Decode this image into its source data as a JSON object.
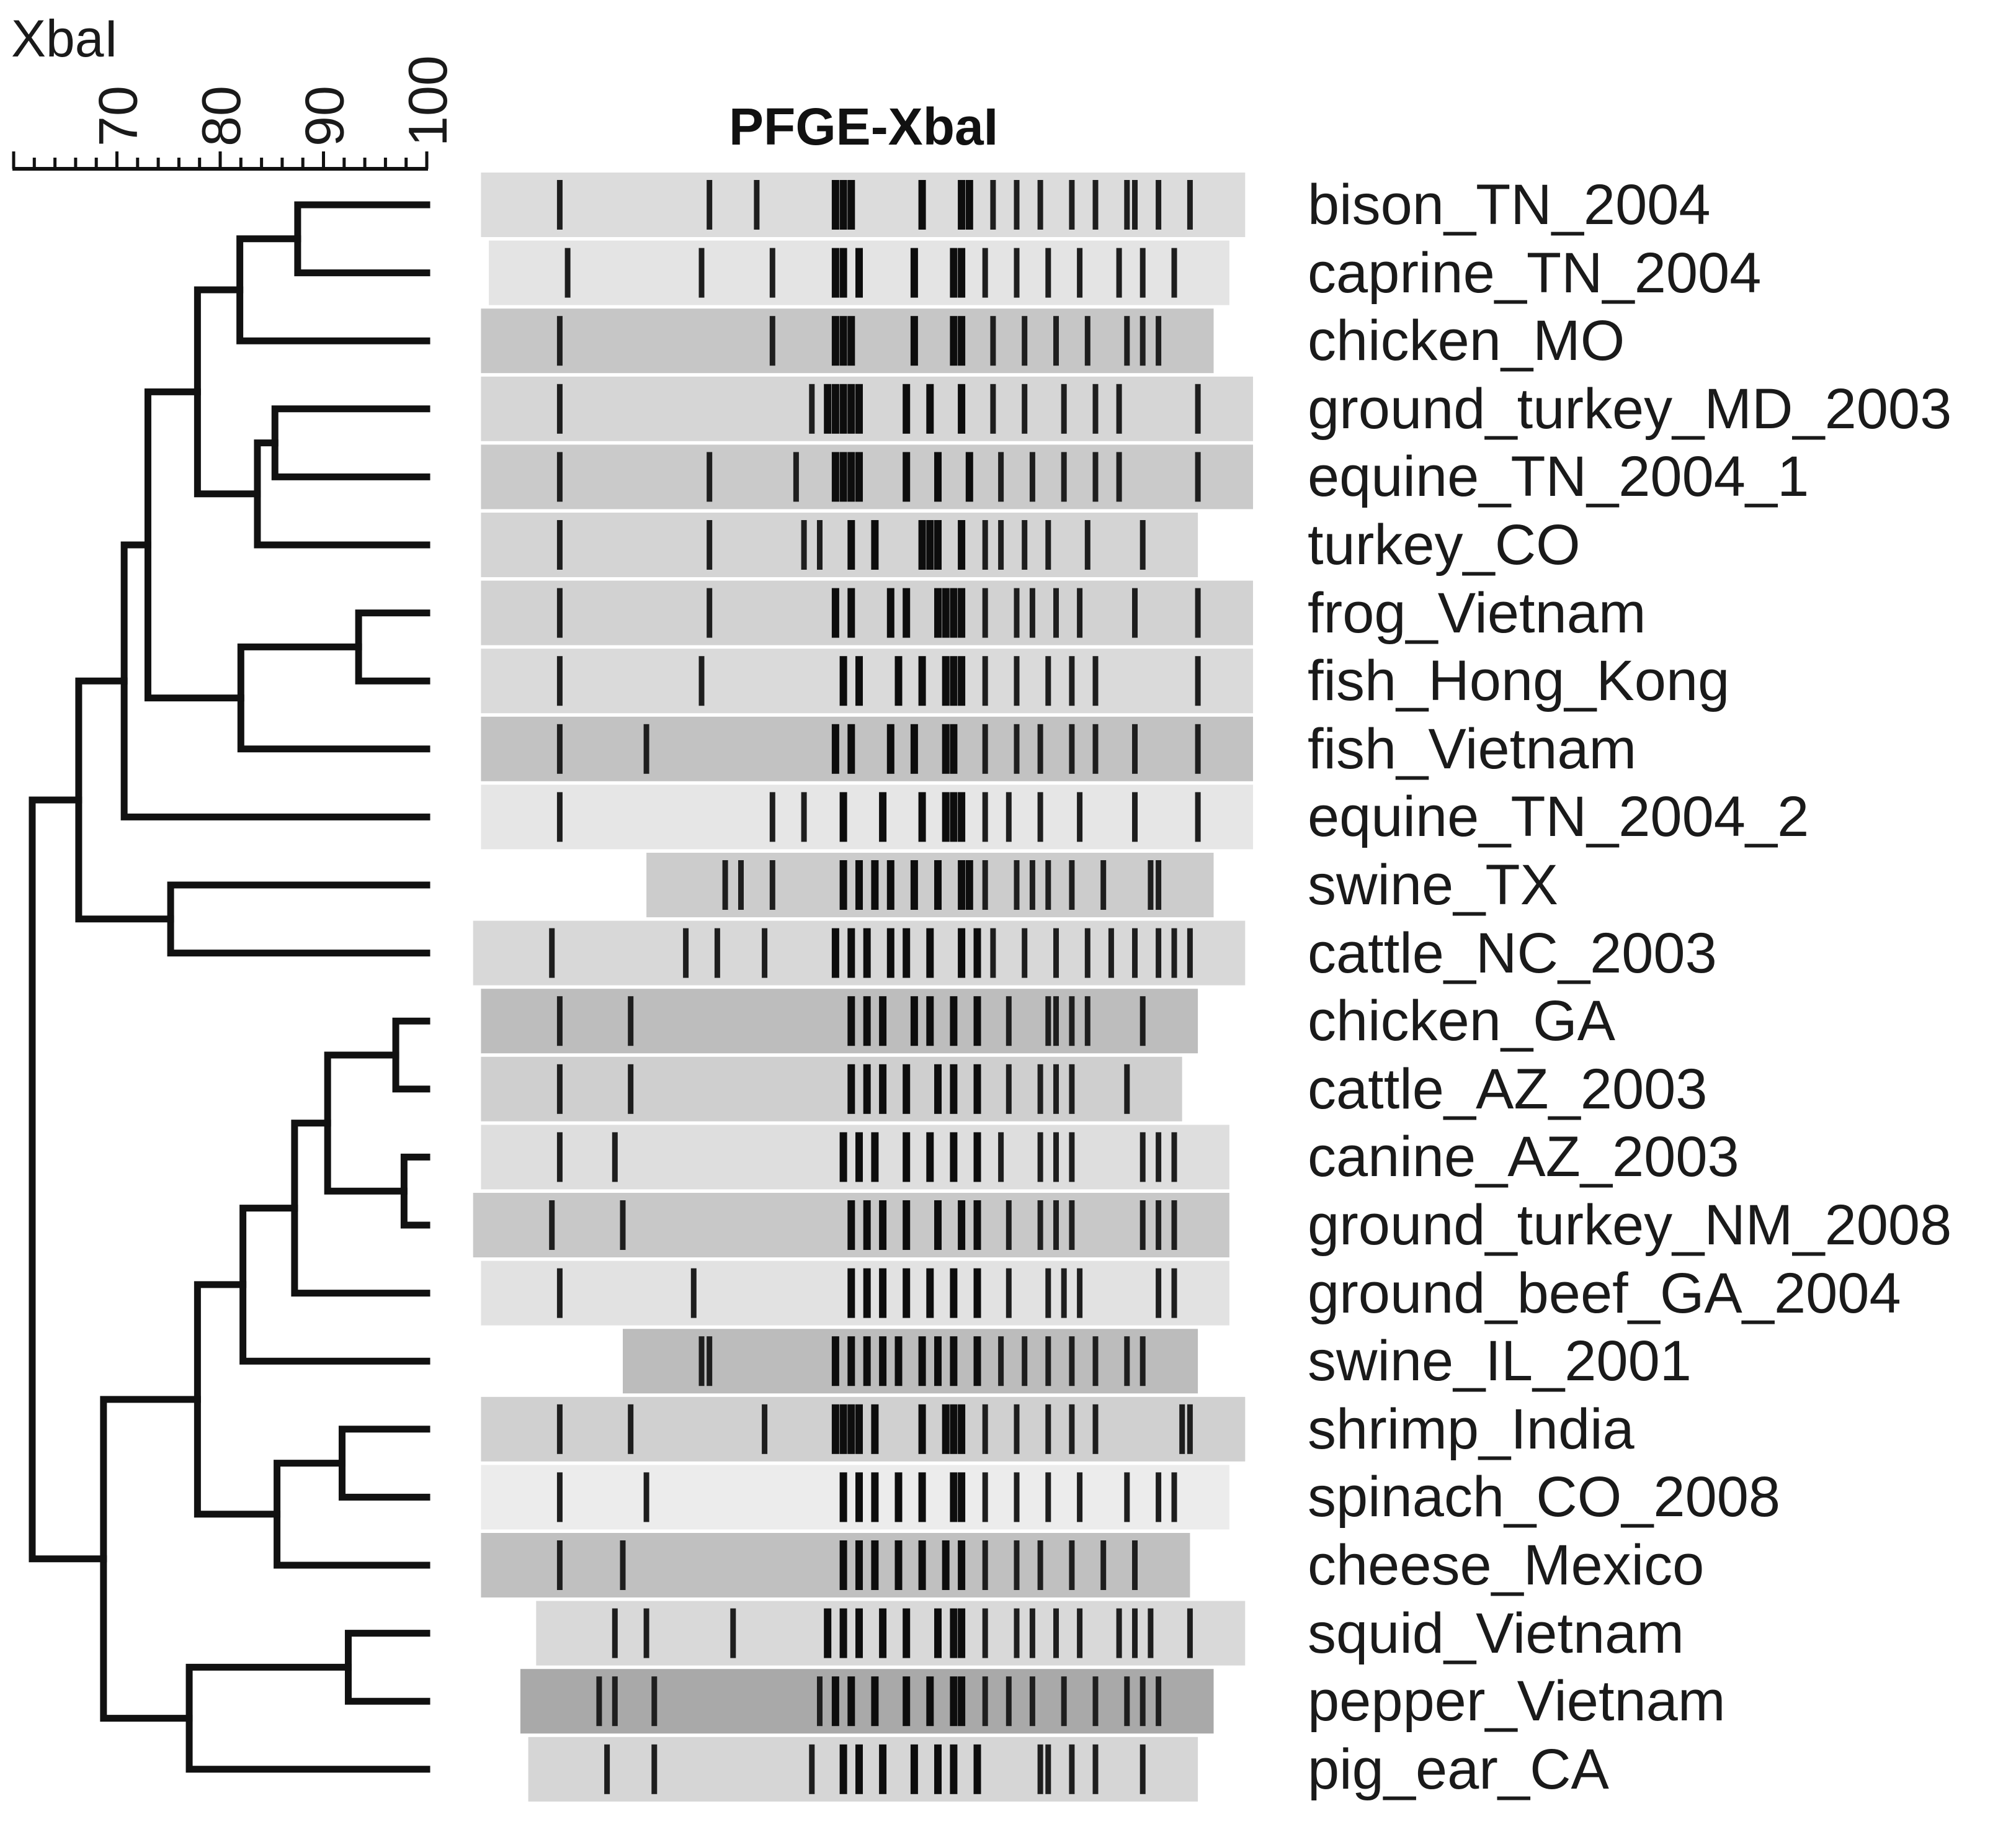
{
  "scale": {
    "title": "XbaI",
    "range": [
      60,
      100
    ],
    "tick_labels": [
      "70",
      "80",
      "90",
      "100"
    ]
  },
  "gel": {
    "title": "PFGE-XbaI"
  },
  "lanes": [
    {
      "label": "bison_TN_2004",
      "shade": "#dcdcdc",
      "bands": [
        0.12,
        0.31,
        0.37,
        0.47,
        0.48,
        0.49,
        0.58,
        0.63,
        0.64,
        0.67,
        0.7,
        0.73,
        0.77,
        0.8,
        0.84,
        0.85,
        0.88,
        0.92
      ]
    },
    {
      "label": "caprine_TN_2004",
      "shade": "#e4e4e4",
      "bands": [
        0.13,
        0.3,
        0.39,
        0.47,
        0.48,
        0.5,
        0.57,
        0.62,
        0.63,
        0.66,
        0.7,
        0.74,
        0.78,
        0.83,
        0.86,
        0.9
      ]
    },
    {
      "label": "chicken_MO",
      "shade": "#c6c6c6",
      "bands": [
        0.12,
        0.39,
        0.47,
        0.48,
        0.49,
        0.57,
        0.62,
        0.63,
        0.67,
        0.71,
        0.75,
        0.79,
        0.84,
        0.86,
        0.88
      ]
    },
    {
      "label": "ground_turkey_MD_2003",
      "shade": "#d6d6d6",
      "bands": [
        0.12,
        0.44,
        0.46,
        0.47,
        0.48,
        0.49,
        0.5,
        0.56,
        0.59,
        0.63,
        0.67,
        0.71,
        0.76,
        0.8,
        0.83,
        0.93
      ]
    },
    {
      "label": "equine_TN_2004_1",
      "shade": "#cacaca",
      "bands": [
        0.12,
        0.31,
        0.42,
        0.47,
        0.48,
        0.49,
        0.5,
        0.56,
        0.6,
        0.64,
        0.68,
        0.72,
        0.76,
        0.8,
        0.83,
        0.93
      ]
    },
    {
      "label": "turkey_CO",
      "shade": "#d4d4d4",
      "bands": [
        0.12,
        0.31,
        0.43,
        0.45,
        0.49,
        0.52,
        0.58,
        0.59,
        0.6,
        0.63,
        0.66,
        0.68,
        0.71,
        0.74,
        0.79,
        0.86
      ]
    },
    {
      "label": "frog_Vietnam",
      "shade": "#d2d2d2",
      "bands": [
        0.12,
        0.31,
        0.47,
        0.49,
        0.54,
        0.56,
        0.6,
        0.61,
        0.62,
        0.63,
        0.66,
        0.7,
        0.72,
        0.75,
        0.78,
        0.85,
        0.93
      ]
    },
    {
      "label": "fish_Hong_Kong",
      "shade": "#dadada",
      "bands": [
        0.12,
        0.3,
        0.48,
        0.5,
        0.55,
        0.58,
        0.61,
        0.62,
        0.63,
        0.66,
        0.7,
        0.74,
        0.77,
        0.8,
        0.93
      ]
    },
    {
      "label": "fish_Vietnam",
      "shade": "#c2c2c2",
      "bands": [
        0.12,
        0.23,
        0.47,
        0.49,
        0.54,
        0.57,
        0.61,
        0.62,
        0.66,
        0.7,
        0.73,
        0.77,
        0.8,
        0.85,
        0.93
      ]
    },
    {
      "label": "equine_TN_2004_2",
      "shade": "#e6e6e6",
      "bands": [
        0.12,
        0.39,
        0.43,
        0.48,
        0.53,
        0.58,
        0.61,
        0.62,
        0.63,
        0.66,
        0.69,
        0.73,
        0.78,
        0.85,
        0.93
      ]
    },
    {
      "label": "swine_TX",
      "shade": "#cccccc",
      "bands": [
        0.33,
        0.35,
        0.39,
        0.48,
        0.5,
        0.52,
        0.54,
        0.57,
        0.6,
        0.63,
        0.64,
        0.66,
        0.7,
        0.72,
        0.74,
        0.77,
        0.81,
        0.87,
        0.88
      ]
    },
    {
      "label": "cattle_NC_2003",
      "shade": "#d8d8d8",
      "bands": [
        0.11,
        0.28,
        0.32,
        0.38,
        0.47,
        0.49,
        0.51,
        0.54,
        0.56,
        0.59,
        0.63,
        0.65,
        0.67,
        0.71,
        0.75,
        0.79,
        0.82,
        0.85,
        0.88,
        0.9,
        0.92
      ]
    },
    {
      "label": "chicken_GA",
      "shade": "#bdbdbd",
      "bands": [
        0.12,
        0.21,
        0.49,
        0.51,
        0.53,
        0.57,
        0.59,
        0.62,
        0.65,
        0.69,
        0.74,
        0.75,
        0.77,
        0.79,
        0.86
      ]
    },
    {
      "label": "cattle_AZ_2003",
      "shade": "#cfcfcf",
      "bands": [
        0.12,
        0.21,
        0.49,
        0.51,
        0.53,
        0.56,
        0.6,
        0.62,
        0.65,
        0.69,
        0.73,
        0.75,
        0.77,
        0.84
      ]
    },
    {
      "label": "canine_AZ_2003",
      "shade": "#dedede",
      "bands": [
        0.12,
        0.19,
        0.48,
        0.5,
        0.52,
        0.56,
        0.59,
        0.62,
        0.65,
        0.68,
        0.73,
        0.75,
        0.77,
        0.86,
        0.88,
        0.9
      ]
    },
    {
      "label": "ground_turkey_NM_2008",
      "shade": "#c8c8c8",
      "bands": [
        0.11,
        0.2,
        0.49,
        0.51,
        0.53,
        0.56,
        0.6,
        0.63,
        0.65,
        0.69,
        0.73,
        0.75,
        0.77,
        0.86,
        0.88,
        0.9
      ]
    },
    {
      "label": "ground_beef_GA_2004",
      "shade": "#e2e2e2",
      "bands": [
        0.12,
        0.29,
        0.49,
        0.51,
        0.53,
        0.56,
        0.59,
        0.62,
        0.65,
        0.69,
        0.74,
        0.76,
        0.78,
        0.88,
        0.9
      ]
    },
    {
      "label": "swine_IL_2001",
      "shade": "#bcbcbc",
      "bands": [
        0.3,
        0.31,
        0.47,
        0.49,
        0.51,
        0.53,
        0.55,
        0.58,
        0.6,
        0.62,
        0.65,
        0.68,
        0.71,
        0.74,
        0.77,
        0.8,
        0.84,
        0.86
      ]
    },
    {
      "label": "shrimp_India",
      "shade": "#d0d0d0",
      "bands": [
        0.12,
        0.21,
        0.38,
        0.47,
        0.48,
        0.49,
        0.5,
        0.52,
        0.58,
        0.61,
        0.62,
        0.63,
        0.66,
        0.7,
        0.74,
        0.77,
        0.8,
        0.91,
        0.92
      ]
    },
    {
      "label": "spinach_CO_2008",
      "shade": "#ececec",
      "bands": [
        0.12,
        0.23,
        0.48,
        0.5,
        0.52,
        0.55,
        0.58,
        0.62,
        0.63,
        0.66,
        0.7,
        0.74,
        0.78,
        0.84,
        0.88,
        0.9
      ]
    },
    {
      "label": "cheese_Mexico",
      "shade": "#c0c0c0",
      "bands": [
        0.12,
        0.2,
        0.48,
        0.5,
        0.52,
        0.55,
        0.58,
        0.61,
        0.63,
        0.66,
        0.7,
        0.73,
        0.77,
        0.81,
        0.85
      ]
    },
    {
      "label": "squid_Vietnam",
      "shade": "#d9d9d9",
      "bands": [
        0.19,
        0.23,
        0.34,
        0.46,
        0.48,
        0.5,
        0.53,
        0.56,
        0.6,
        0.62,
        0.63,
        0.66,
        0.7,
        0.72,
        0.75,
        0.78,
        0.83,
        0.85,
        0.87,
        0.92
      ]
    },
    {
      "label": "pepper_Vietnam",
      "shade": "#a9a9a9",
      "bands": [
        0.17,
        0.19,
        0.24,
        0.45,
        0.47,
        0.49,
        0.52,
        0.56,
        0.59,
        0.62,
        0.63,
        0.66,
        0.69,
        0.72,
        0.76,
        0.8,
        0.84,
        0.86,
        0.88
      ]
    },
    {
      "label": "pig_ear_CA",
      "shade": "#d6d6d6",
      "bands": [
        0.18,
        0.24,
        0.44,
        0.48,
        0.5,
        0.53,
        0.57,
        0.6,
        0.62,
        0.65,
        0.73,
        0.74,
        0.77,
        0.8,
        0.86
      ]
    }
  ],
  "dendrogram": {
    "merges": [
      {
        "a": "L0",
        "b": "L1",
        "sim": 87.5
      },
      {
        "a": "L3",
        "b": "L4",
        "sim": 85.3
      },
      {
        "a": "L6",
        "b": "L7",
        "sim": 93.4
      },
      {
        "a": "L12",
        "b": "L13",
        "sim": 97.0
      },
      {
        "a": "L14",
        "b": "L15",
        "sim": 97.8
      },
      {
        "a": "L18",
        "b": "L19",
        "sim": 91.8
      },
      {
        "a": "L21",
        "b": "L22",
        "sim": 92.4
      },
      {
        "a": "L10",
        "b": "L11",
        "sim": 75.2
      },
      {
        "a": "M0",
        "b": "L2",
        "sim": 81.9
      },
      {
        "a": "M1",
        "b": "L5",
        "sim": 83.6
      },
      {
        "a": "M2",
        "b": "L8",
        "sim": 82.0
      },
      {
        "a": "M3",
        "b": "M4",
        "sim": 90.4
      },
      {
        "a": "M11",
        "b": "L16",
        "sim": 87.2
      },
      {
        "a": "M12",
        "b": "L17",
        "sim": 82.2
      },
      {
        "a": "M5",
        "b": "L20",
        "sim": 85.5
      },
      {
        "a": "M8",
        "b": "M9",
        "sim": 77.8
      },
      {
        "a": "M6",
        "b": "L23",
        "sim": 77.0
      },
      {
        "a": "M15",
        "b": "M10",
        "sim": 73.0
      },
      {
        "a": "M13",
        "b": "M14",
        "sim": 77.8
      },
      {
        "a": "M17",
        "b": "L9",
        "sim": 70.7
      },
      {
        "a": "M18",
        "b": "M16",
        "sim": 68.7
      },
      {
        "a": "M19",
        "b": "M7",
        "sim": 66.3
      },
      {
        "a": "M21",
        "b": "M20",
        "sim": 61.8
      }
    ]
  }
}
